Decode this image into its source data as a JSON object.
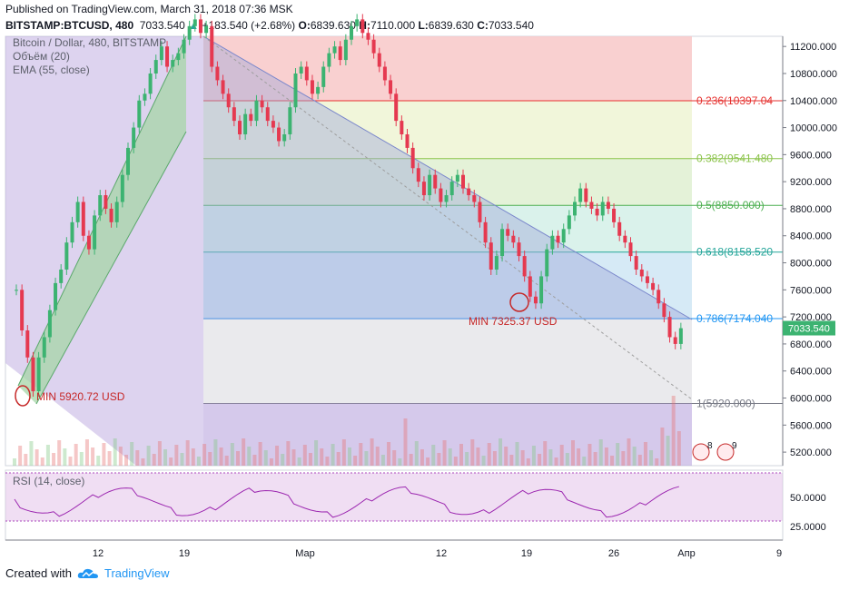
{
  "header": {
    "published": "Published on TradingView.com, March 31, 2018 07:36 MSK",
    "symbol": "BITSTAMP:BTCUSD, 480",
    "last": "7033.540",
    "change": "+183.540 (+2.68%)",
    "open_label": "O:",
    "open": "6839.630",
    "high_label": "H:",
    "high": "7110.000",
    "low_label": "L:",
    "low": "6839.630",
    "close_label": "C:",
    "close": "7033.540"
  },
  "legend": {
    "title": "Bitcoin / Dollar, 480, BITSTAMP",
    "volume": "Объём (20)",
    "ema": "EMA (55, close)"
  },
  "rsi": {
    "label": "RSI (14, close)",
    "ticks": [
      "50.0000",
      "25.0000"
    ]
  },
  "footer": {
    "created_with": "Created with",
    "brand": "TradingView"
  },
  "annotations": {
    "min_left": "MIN 5920.72 USD",
    "min_right": "MIN 7325.37 USD"
  },
  "price_tag": "7033.540",
  "event_badges": [
    "8",
    "9"
  ],
  "colors": {
    "up": "#3cb371",
    "down": "#e53950",
    "fib_0236": "#e6312f",
    "fib_0382": "#8bc34a",
    "fib_05": "#4caf50",
    "fib_0618": "#26a69a",
    "fib_0786": "#2196f3",
    "fib_1": "#787b86",
    "channel_green": "#a5d6a7",
    "channel_purple": "#b39ddb",
    "brand": "#2196f3"
  },
  "chart_data": {
    "type": "candlestick",
    "title": "Bitcoin / Dollar, 480, BITSTAMP",
    "y_ticks": [
      "11200.000",
      "10800.000",
      "10400.000",
      "10000.000",
      "9600.000",
      "9200.000",
      "8800.000",
      "8400.000",
      "8000.000",
      "7600.000",
      "7200.000",
      "6800.000",
      "6400.000",
      "6000.000",
      "5600.000",
      "5200.000"
    ],
    "x_ticks": [
      "12",
      "19",
      "Мар",
      "12",
      "19",
      "26",
      "Апр",
      "9"
    ],
    "fib_levels": [
      {
        "ratio": "0.236",
        "price": 10397.04,
        "label": "0.236(10397.04"
      },
      {
        "ratio": "0.382",
        "price": 9541.48,
        "label": "0.382(9541.480"
      },
      {
        "ratio": "0.5",
        "price": 8850.0,
        "label": "0.5(8850.000)"
      },
      {
        "ratio": "0.618",
        "price": 8158.52,
        "label": "0.618(8158.520"
      },
      {
        "ratio": "0.786",
        "price": 7174.04,
        "label": "0.786(7174.040"
      },
      {
        "ratio": "1",
        "price": 5920.0,
        "label": "1(5920.000)"
      }
    ],
    "minima": [
      5920.72,
      7325.37
    ],
    "close_series": [
      7600,
      7000,
      6600,
      6100,
      6600,
      6900,
      7300,
      7700,
      7900,
      8300,
      8600,
      8900,
      8400,
      8200,
      8700,
      9000,
      8800,
      8600,
      8900,
      9300,
      9700,
      10000,
      10400,
      10500,
      10800,
      11000,
      11200,
      10900,
      11000,
      11100,
      11300,
      11500,
      11600,
      11400,
      11500,
      10900,
      10700,
      10500,
      10300,
      10100,
      9900,
      10200,
      10100,
      10400,
      10300,
      10100,
      10000,
      9800,
      9900,
      10300,
      10800,
      10900,
      10700,
      10500,
      10600,
      10900,
      11100,
      11200,
      11000,
      11300,
      11500,
      11600,
      11400,
      11300,
      11100,
      10900,
      10700,
      10500,
      10100,
      9900,
      9700,
      9400,
      9200,
      9000,
      9300,
      9100,
      8900,
      9000,
      9200,
      9300,
      9100,
      9000,
      8900,
      8600,
      8300,
      7900,
      8100,
      8500,
      8400,
      8300,
      8100,
      7800,
      7500,
      7400,
      7800,
      8200,
      8400,
      8300,
      8500,
      8700,
      8900,
      9100,
      8900,
      8800,
      8700,
      8900,
      8800,
      8600,
      8400,
      8300,
      8100,
      7900,
      7800,
      7700,
      7600,
      7400,
      7200,
      6900,
      6800,
      7033
    ]
  }
}
